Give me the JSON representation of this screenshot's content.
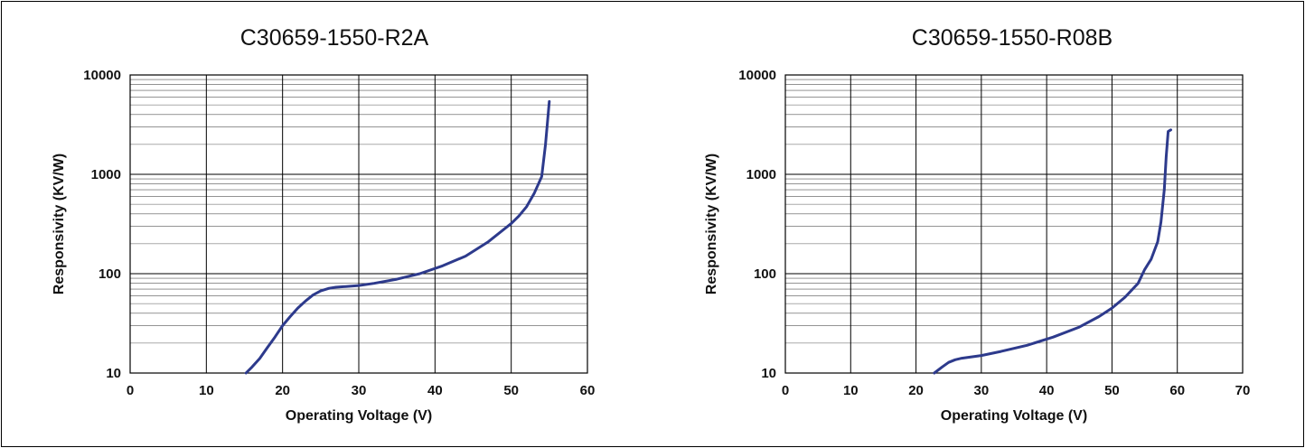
{
  "chart_data": [
    {
      "type": "line",
      "title": "C30659-1550-R2A",
      "xlabel": "Operating Voltage (V)",
      "ylabel": "Responsivity (KV/W)",
      "xlim": [
        0,
        60
      ],
      "ylim": [
        10,
        10000
      ],
      "yscale": "log",
      "grid": true,
      "xticks": [
        0,
        10,
        20,
        30,
        40,
        50,
        60
      ],
      "yticks": [
        10,
        100,
        1000,
        10000
      ],
      "line_color": "#2d3a8c",
      "series": [
        {
          "x": [
            15.2,
            16,
            17,
            18,
            19,
            20,
            21,
            22,
            23,
            24,
            25,
            26,
            27,
            28,
            30,
            32,
            35,
            38,
            41,
            44,
            47,
            50,
            51,
            52,
            53,
            54,
            54.5,
            55
          ],
          "y": [
            10,
            11.5,
            14,
            18,
            23,
            30,
            37,
            45,
            53,
            61,
            67,
            71,
            73,
            74,
            76,
            80,
            88,
            100,
            120,
            150,
            210,
            320,
            380,
            470,
            640,
            950,
            2000,
            5400
          ]
        }
      ]
    },
    {
      "type": "line",
      "title": "C30659-1550-R08B",
      "xlabel": "Operating Voltage (V)",
      "ylabel": "Responsivity (KV/W)",
      "xlim": [
        0,
        70
      ],
      "ylim": [
        10,
        10000
      ],
      "yscale": "log",
      "grid": true,
      "xticks": [
        0,
        10,
        20,
        30,
        40,
        50,
        60,
        70
      ],
      "yticks": [
        10,
        100,
        1000,
        10000
      ],
      "line_color": "#2d3a8c",
      "series": [
        {
          "x": [
            22.8,
            24,
            25,
            26,
            27,
            28,
            30,
            33,
            37,
            41,
            45,
            48,
            50,
            52,
            54,
            55,
            56,
            57,
            57.5,
            58,
            58.3,
            58.6,
            59
          ],
          "y": [
            10,
            11.5,
            12.8,
            13.6,
            14.1,
            14.4,
            15,
            16.5,
            19,
            23,
            29,
            37,
            45,
            58,
            80,
            110,
            140,
            210,
            330,
            700,
            1500,
            2700,
            2800
          ]
        }
      ]
    }
  ]
}
